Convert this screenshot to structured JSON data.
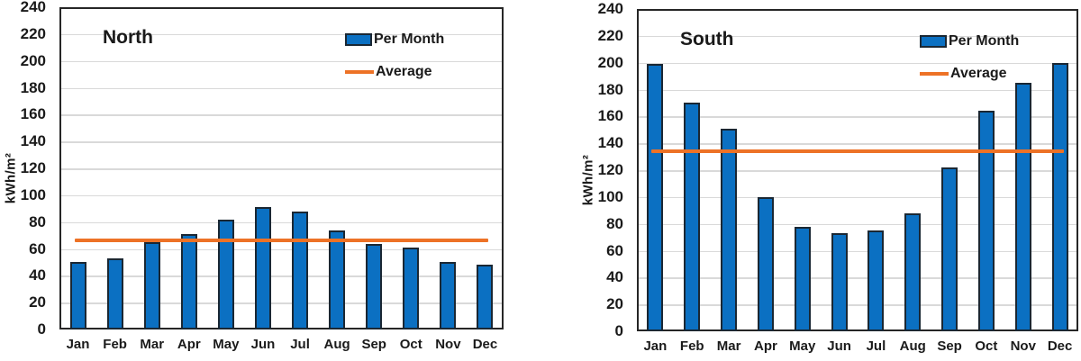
{
  "figure": {
    "background": "#ffffff",
    "description": "Two side-by-side monthly bar charts with average reference lines"
  },
  "colors": {
    "bar_fill": "#0B70C2",
    "bar_border": "#1A2733",
    "average_line": "#ED7226",
    "gridline": "#D9D9D9",
    "plot_border": "#262626",
    "text": "#1A1A1A"
  },
  "chart_data": [
    {
      "type": "bar",
      "title": "North",
      "ylabel": "kWh/m²",
      "xlabel": "",
      "categories": [
        "Jan",
        "Feb",
        "Mar",
        "Apr",
        "May",
        "Jun",
        "Jul",
        "Aug",
        "Sep",
        "Oct",
        "Nov",
        "Dec"
      ],
      "series": [
        {
          "name": "Per Month",
          "values": [
            50,
            53,
            65,
            71,
            82,
            91,
            88,
            74,
            64,
            61,
            50,
            48
          ]
        }
      ],
      "average_line": {
        "name": "Average",
        "value": 66.5
      },
      "ylim": [
        0,
        240
      ],
      "ytick_step": 20,
      "grid": true,
      "legend_position": "top-right"
    },
    {
      "type": "bar",
      "title": "South",
      "ylabel": "kWh/m²",
      "xlabel": "",
      "categories": [
        "Jan",
        "Feb",
        "Mar",
        "Apr",
        "May",
        "Jun",
        "Jul",
        "Aug",
        "Sep",
        "Oct",
        "Nov",
        "Dec"
      ],
      "series": [
        {
          "name": "Per Month",
          "values": [
            199,
            170,
            151,
            100,
            78,
            73,
            75,
            88,
            122,
            164,
            185,
            200
          ]
        }
      ],
      "average_line": {
        "name": "Average",
        "value": 133.8
      },
      "ylim": [
        0,
        240
      ],
      "ytick_step": 20,
      "grid": true,
      "legend_position": "top-right"
    }
  ]
}
